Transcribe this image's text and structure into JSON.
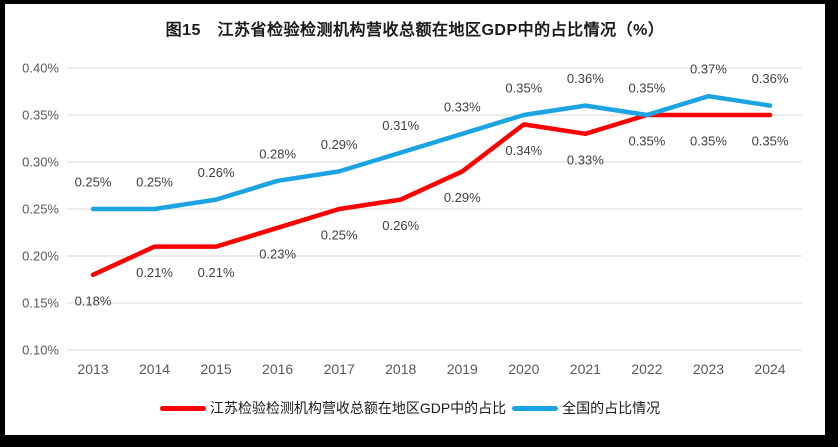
{
  "title": "图15　江苏省检验检测机构营收总额在地区GDP中的占比情况（%）",
  "chart_data": {
    "type": "line",
    "title": "图15　江苏省检验检测机构营收总额在地区GDP中的占比情况（%）",
    "categories": [
      "2013",
      "2014",
      "2015",
      "2016",
      "2017",
      "2018",
      "2019",
      "2020",
      "2021",
      "2022",
      "2023",
      "2024"
    ],
    "series": [
      {
        "name": "江苏检验检测机构营收总额在地区GDP中的占比",
        "color": "#ff0000",
        "values": [
          0.18,
          0.21,
          0.21,
          0.23,
          0.25,
          0.26,
          0.29,
          0.34,
          0.33,
          0.35,
          0.35,
          0.35
        ],
        "data_labels": [
          "0.18%",
          "0.21%",
          "0.21%",
          "0.23%",
          "0.25%",
          "0.26%",
          "0.29%",
          "0.34%",
          "0.33%",
          "0.35%",
          "0.35%",
          "0.35%"
        ],
        "label_position": "below"
      },
      {
        "name": "全国的占比情况",
        "color": "#1ba3e2",
        "values": [
          0.25,
          0.25,
          0.26,
          0.28,
          0.29,
          0.31,
          0.33,
          0.35,
          0.36,
          0.35,
          0.37,
          0.36
        ],
        "data_labels": [
          "0.25%",
          "0.25%",
          "0.26%",
          "0.28%",
          "0.29%",
          "0.31%",
          "0.33%",
          "0.35%",
          "0.36%",
          "0.35%",
          "0.37%",
          "0.36%"
        ],
        "label_position": "above"
      }
    ],
    "xlabel": "",
    "ylabel": "",
    "ylim": [
      0.1,
      0.4
    ],
    "ytick_step": 0.05,
    "ytick_labels": [
      "0.10%",
      "0.15%",
      "0.20%",
      "0.25%",
      "0.30%",
      "0.35%",
      "0.40%"
    ],
    "grid": "horizontal-only",
    "gridline_color": "#d9d9d9",
    "tick_label_color": "#595959",
    "data_label_color": "#3f3f3f",
    "legend_position": "bottom",
    "frame_color": "#000000"
  }
}
